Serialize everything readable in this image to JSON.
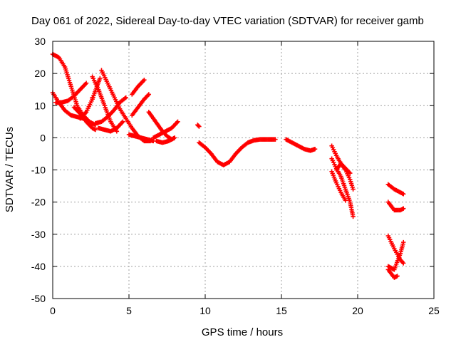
{
  "chart_data": {
    "type": "scatter",
    "title": "Day 061 of 2022, Sidereal Day-to-day VTEC variation (SDTVAR) for receiver gamb",
    "xlabel": "GPS time / hours",
    "ylabel": "SDTVAR / TECUs",
    "xlim": [
      0,
      25
    ],
    "ylim": [
      -50,
      30
    ],
    "xticks": [
      "0",
      "5",
      "10",
      "15",
      "20",
      "25"
    ],
    "yticks": [
      "30",
      "20",
      "10",
      "0",
      "-10",
      "-20",
      "-30",
      "-40",
      "-50"
    ],
    "grid": true,
    "marker": "+",
    "color": "#ff0000",
    "tracks": [
      {
        "points": [
          [
            0.0,
            26
          ],
          [
            0.4,
            25
          ],
          [
            0.8,
            22
          ],
          [
            1.2,
            16
          ],
          [
            1.6,
            10
          ],
          [
            2.0,
            7
          ],
          [
            2.4,
            5
          ],
          [
            2.8,
            4
          ]
        ]
      },
      {
        "points": [
          [
            0.0,
            14
          ],
          [
            0.4,
            11
          ],
          [
            0.8,
            8.5
          ],
          [
            1.2,
            7
          ],
          [
            1.6,
            6.5
          ],
          [
            2.0,
            6
          ]
        ]
      },
      {
        "points": [
          [
            0.2,
            11
          ],
          [
            0.6,
            11
          ],
          [
            1.0,
            11.5
          ],
          [
            1.4,
            13
          ],
          [
            1.8,
            15
          ],
          [
            2.2,
            17
          ]
        ]
      },
      {
        "points": [
          [
            1.4,
            9.5
          ],
          [
            1.8,
            7.5
          ],
          [
            2.2,
            5
          ],
          [
            2.6,
            3
          ],
          [
            2.8,
            2.5
          ]
        ]
      },
      {
        "points": [
          [
            2.6,
            12.5
          ]
        ]
      },
      {
        "points": [
          [
            1.8,
            6
          ],
          [
            2.2,
            8
          ],
          [
            2.6,
            12
          ],
          [
            2.9,
            16
          ],
          [
            3.1,
            18.5
          ]
        ]
      },
      {
        "points": [
          [
            2.6,
            19
          ],
          [
            3.0,
            15
          ],
          [
            3.4,
            10
          ],
          [
            3.8,
            5
          ],
          [
            4.2,
            2
          ]
        ]
      },
      {
        "points": [
          [
            3.2,
            21
          ],
          [
            3.6,
            17
          ],
          [
            4.0,
            13
          ],
          [
            4.4,
            9
          ],
          [
            4.8,
            6
          ],
          [
            5.2,
            3
          ],
          [
            5.6,
            0.5
          ],
          [
            6.0,
            -1
          ],
          [
            6.4,
            -1
          ]
        ]
      },
      {
        "points": [
          [
            2.8,
            4.5
          ],
          [
            3.2,
            5
          ],
          [
            3.6,
            6.5
          ],
          [
            4.0,
            8.5
          ],
          [
            4.4,
            11
          ],
          [
            4.8,
            12.5
          ]
        ]
      },
      {
        "points": [
          [
            3.0,
            3
          ],
          [
            3.4,
            2.5
          ],
          [
            3.8,
            2
          ],
          [
            4.2,
            3
          ],
          [
            4.6,
            5
          ]
        ]
      },
      {
        "points": [
          [
            5.2,
            13.5
          ],
          [
            5.6,
            16
          ],
          [
            6.0,
            18
          ]
        ]
      },
      {
        "points": [
          [
            5.2,
            7
          ],
          [
            5.6,
            9.5
          ],
          [
            6.0,
            12
          ],
          [
            6.3,
            13.5
          ]
        ]
      },
      {
        "points": [
          [
            5.0,
            1
          ],
          [
            5.4,
            0.5
          ],
          [
            5.8,
            0
          ],
          [
            6.2,
            -0.5
          ],
          [
            6.6,
            -1
          ]
        ]
      },
      {
        "points": [
          [
            6.3,
            8
          ],
          [
            6.6,
            6
          ],
          [
            6.9,
            4
          ],
          [
            7.2,
            2
          ],
          [
            7.5,
            0.5
          ],
          [
            7.8,
            -0.5
          ]
        ]
      },
      {
        "points": [
          [
            6.6,
            0
          ],
          [
            7.0,
            1
          ],
          [
            7.4,
            2
          ],
          [
            7.8,
            3
          ],
          [
            8.2,
            5
          ]
        ]
      },
      {
        "points": [
          [
            6.8,
            -1
          ],
          [
            7.2,
            -1.5
          ],
          [
            7.6,
            -1
          ],
          [
            8.0,
            0
          ]
        ]
      },
      {
        "points": [
          [
            9.5,
            4
          ],
          [
            9.6,
            3.5
          ]
        ]
      },
      {
        "points": [
          [
            9.6,
            -1.5
          ],
          [
            10.0,
            -3
          ],
          [
            10.4,
            -5
          ],
          [
            10.8,
            -7.5
          ],
          [
            11.2,
            -8.5
          ],
          [
            11.6,
            -7.5
          ],
          [
            12.0,
            -5
          ],
          [
            12.4,
            -3
          ],
          [
            12.8,
            -1.5
          ],
          [
            13.2,
            -0.8
          ],
          [
            13.6,
            -0.5
          ],
          [
            14.0,
            -0.5
          ],
          [
            14.4,
            -0.5
          ],
          [
            14.6,
            -0.5
          ]
        ]
      },
      {
        "points": [
          [
            15.3,
            -0.5
          ],
          [
            15.7,
            -1.5
          ],
          [
            16.1,
            -2.5
          ],
          [
            16.5,
            -3.5
          ],
          [
            16.9,
            -4
          ],
          [
            17.2,
            -3.5
          ]
        ]
      },
      {
        "points": [
          [
            18.3,
            -2.5
          ],
          [
            18.6,
            -5.5
          ],
          [
            18.9,
            -8
          ],
          [
            19.2,
            -10
          ],
          [
            19.5,
            -13
          ],
          [
            19.7,
            -16
          ]
        ]
      },
      {
        "points": [
          [
            18.3,
            -6.5
          ],
          [
            18.6,
            -9.5
          ],
          [
            18.9,
            -12
          ],
          [
            19.2,
            -16
          ],
          [
            19.5,
            -20
          ],
          [
            19.7,
            -24.5
          ]
        ]
      },
      {
        "points": [
          [
            18.6,
            -10
          ],
          [
            18.9,
            -8
          ],
          [
            19.2,
            -9.5
          ],
          [
            19.5,
            -11
          ]
        ]
      },
      {
        "points": [
          [
            18.3,
            -10.5
          ],
          [
            18.6,
            -14
          ],
          [
            18.9,
            -17
          ],
          [
            19.2,
            -19.5
          ]
        ]
      },
      {
        "points": [
          [
            22.0,
            -14.5
          ],
          [
            22.4,
            -16
          ],
          [
            22.8,
            -17
          ],
          [
            23.0,
            -17.5
          ]
        ]
      },
      {
        "points": [
          [
            22.0,
            -20
          ],
          [
            22.4,
            -22.5
          ],
          [
            22.8,
            -22.5
          ],
          [
            23.0,
            -22
          ]
        ]
      },
      {
        "points": [
          [
            22.0,
            -30.5
          ],
          [
            22.4,
            -34.5
          ],
          [
            22.8,
            -38
          ],
          [
            23.0,
            -39
          ]
        ]
      },
      {
        "points": [
          [
            22.0,
            -40
          ],
          [
            22.4,
            -41
          ],
          [
            22.8,
            -36
          ],
          [
            23.0,
            -32.5
          ]
        ]
      },
      {
        "points": [
          [
            22.0,
            -41
          ],
          [
            22.4,
            -43.5
          ],
          [
            22.6,
            -43
          ]
        ]
      }
    ]
  }
}
